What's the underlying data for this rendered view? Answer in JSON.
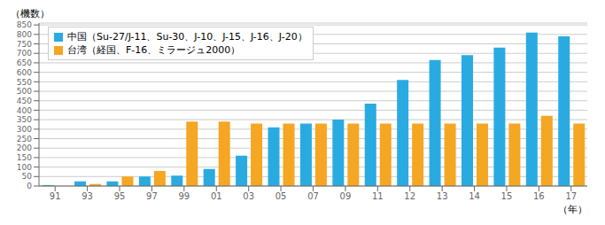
{
  "chart_data": {
    "type": "bar",
    "categories": [
      "91",
      "93",
      "95",
      "97",
      "99",
      "01",
      "03",
      "05",
      "07",
      "09",
      "11",
      "12",
      "13",
      "14",
      "15",
      "16",
      "17"
    ],
    "series": [
      {
        "name": "中国（Su-27/J-11、Su-30、J-10、J-15、J-16、J-20）",
        "color": "#29ABE2",
        "values": [
          5,
          24,
          24,
          50,
          55,
          90,
          160,
          310,
          330,
          350,
          435,
          560,
          665,
          690,
          730,
          810,
          790
        ]
      },
      {
        "name": "台湾（経国、F-16、ミラージュ2000）",
        "color": "#F5A623",
        "values": [
          0,
          10,
          50,
          80,
          340,
          340,
          330,
          330,
          330,
          330,
          330,
          330,
          330,
          330,
          330,
          370,
          330
        ]
      }
    ],
    "ylabel": "（機数）",
    "xlabel": "（年）",
    "ylim": [
      0,
      860
    ],
    "yticks": [
      0,
      50,
      100,
      150,
      200,
      250,
      300,
      350,
      400,
      450,
      500,
      550,
      600,
      650,
      700,
      750,
      800,
      850
    ],
    "grid": true,
    "legend": "upper left"
  }
}
